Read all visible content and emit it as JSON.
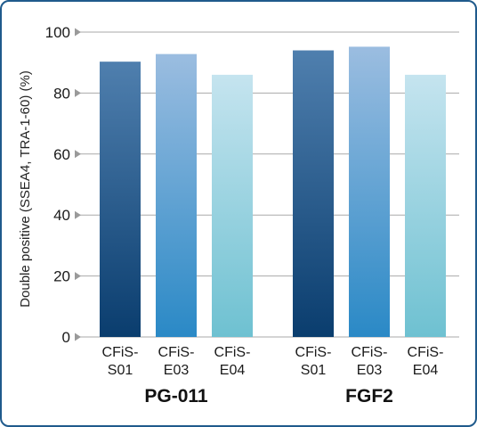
{
  "chart_data": {
    "type": "bar",
    "title": "",
    "ylabel": "Double positive (SSEA4, TRA-1-60) (%)",
    "xlabel": "",
    "ylim": [
      0,
      100
    ],
    "yticks": [
      0,
      20,
      40,
      60,
      80,
      100
    ],
    "grid": true,
    "legend": "none",
    "groups": [
      {
        "name": "PG-011",
        "bars": [
          {
            "label_line1": "CFiS-",
            "label_line2": "S01",
            "value": 90.3
          },
          {
            "label_line1": "CFiS-",
            "label_line2": "E03",
            "value": 92.8
          },
          {
            "label_line1": "CFiS-",
            "label_line2": "E04",
            "value": 86.0
          }
        ]
      },
      {
        "name": "FGF2",
        "bars": [
          {
            "label_line1": "CFiS-",
            "label_line2": "S01",
            "value": 94.0
          },
          {
            "label_line1": "CFiS-",
            "label_line2": "E03",
            "value": 95.2
          },
          {
            "label_line1": "CFiS-",
            "label_line2": "E04",
            "value": 86.0
          }
        ]
      }
    ],
    "colors": {
      "S01": {
        "top": "#4f7fae",
        "bottom": "#0a3d6e"
      },
      "E03": {
        "top": "#9bbde0",
        "bottom": "#2a89c6"
      },
      "E04": {
        "top": "#c5e4ef",
        "bottom": "#6ec1d1"
      },
      "frame": "#1f5a8c",
      "grid": "#a9a9a9"
    }
  }
}
